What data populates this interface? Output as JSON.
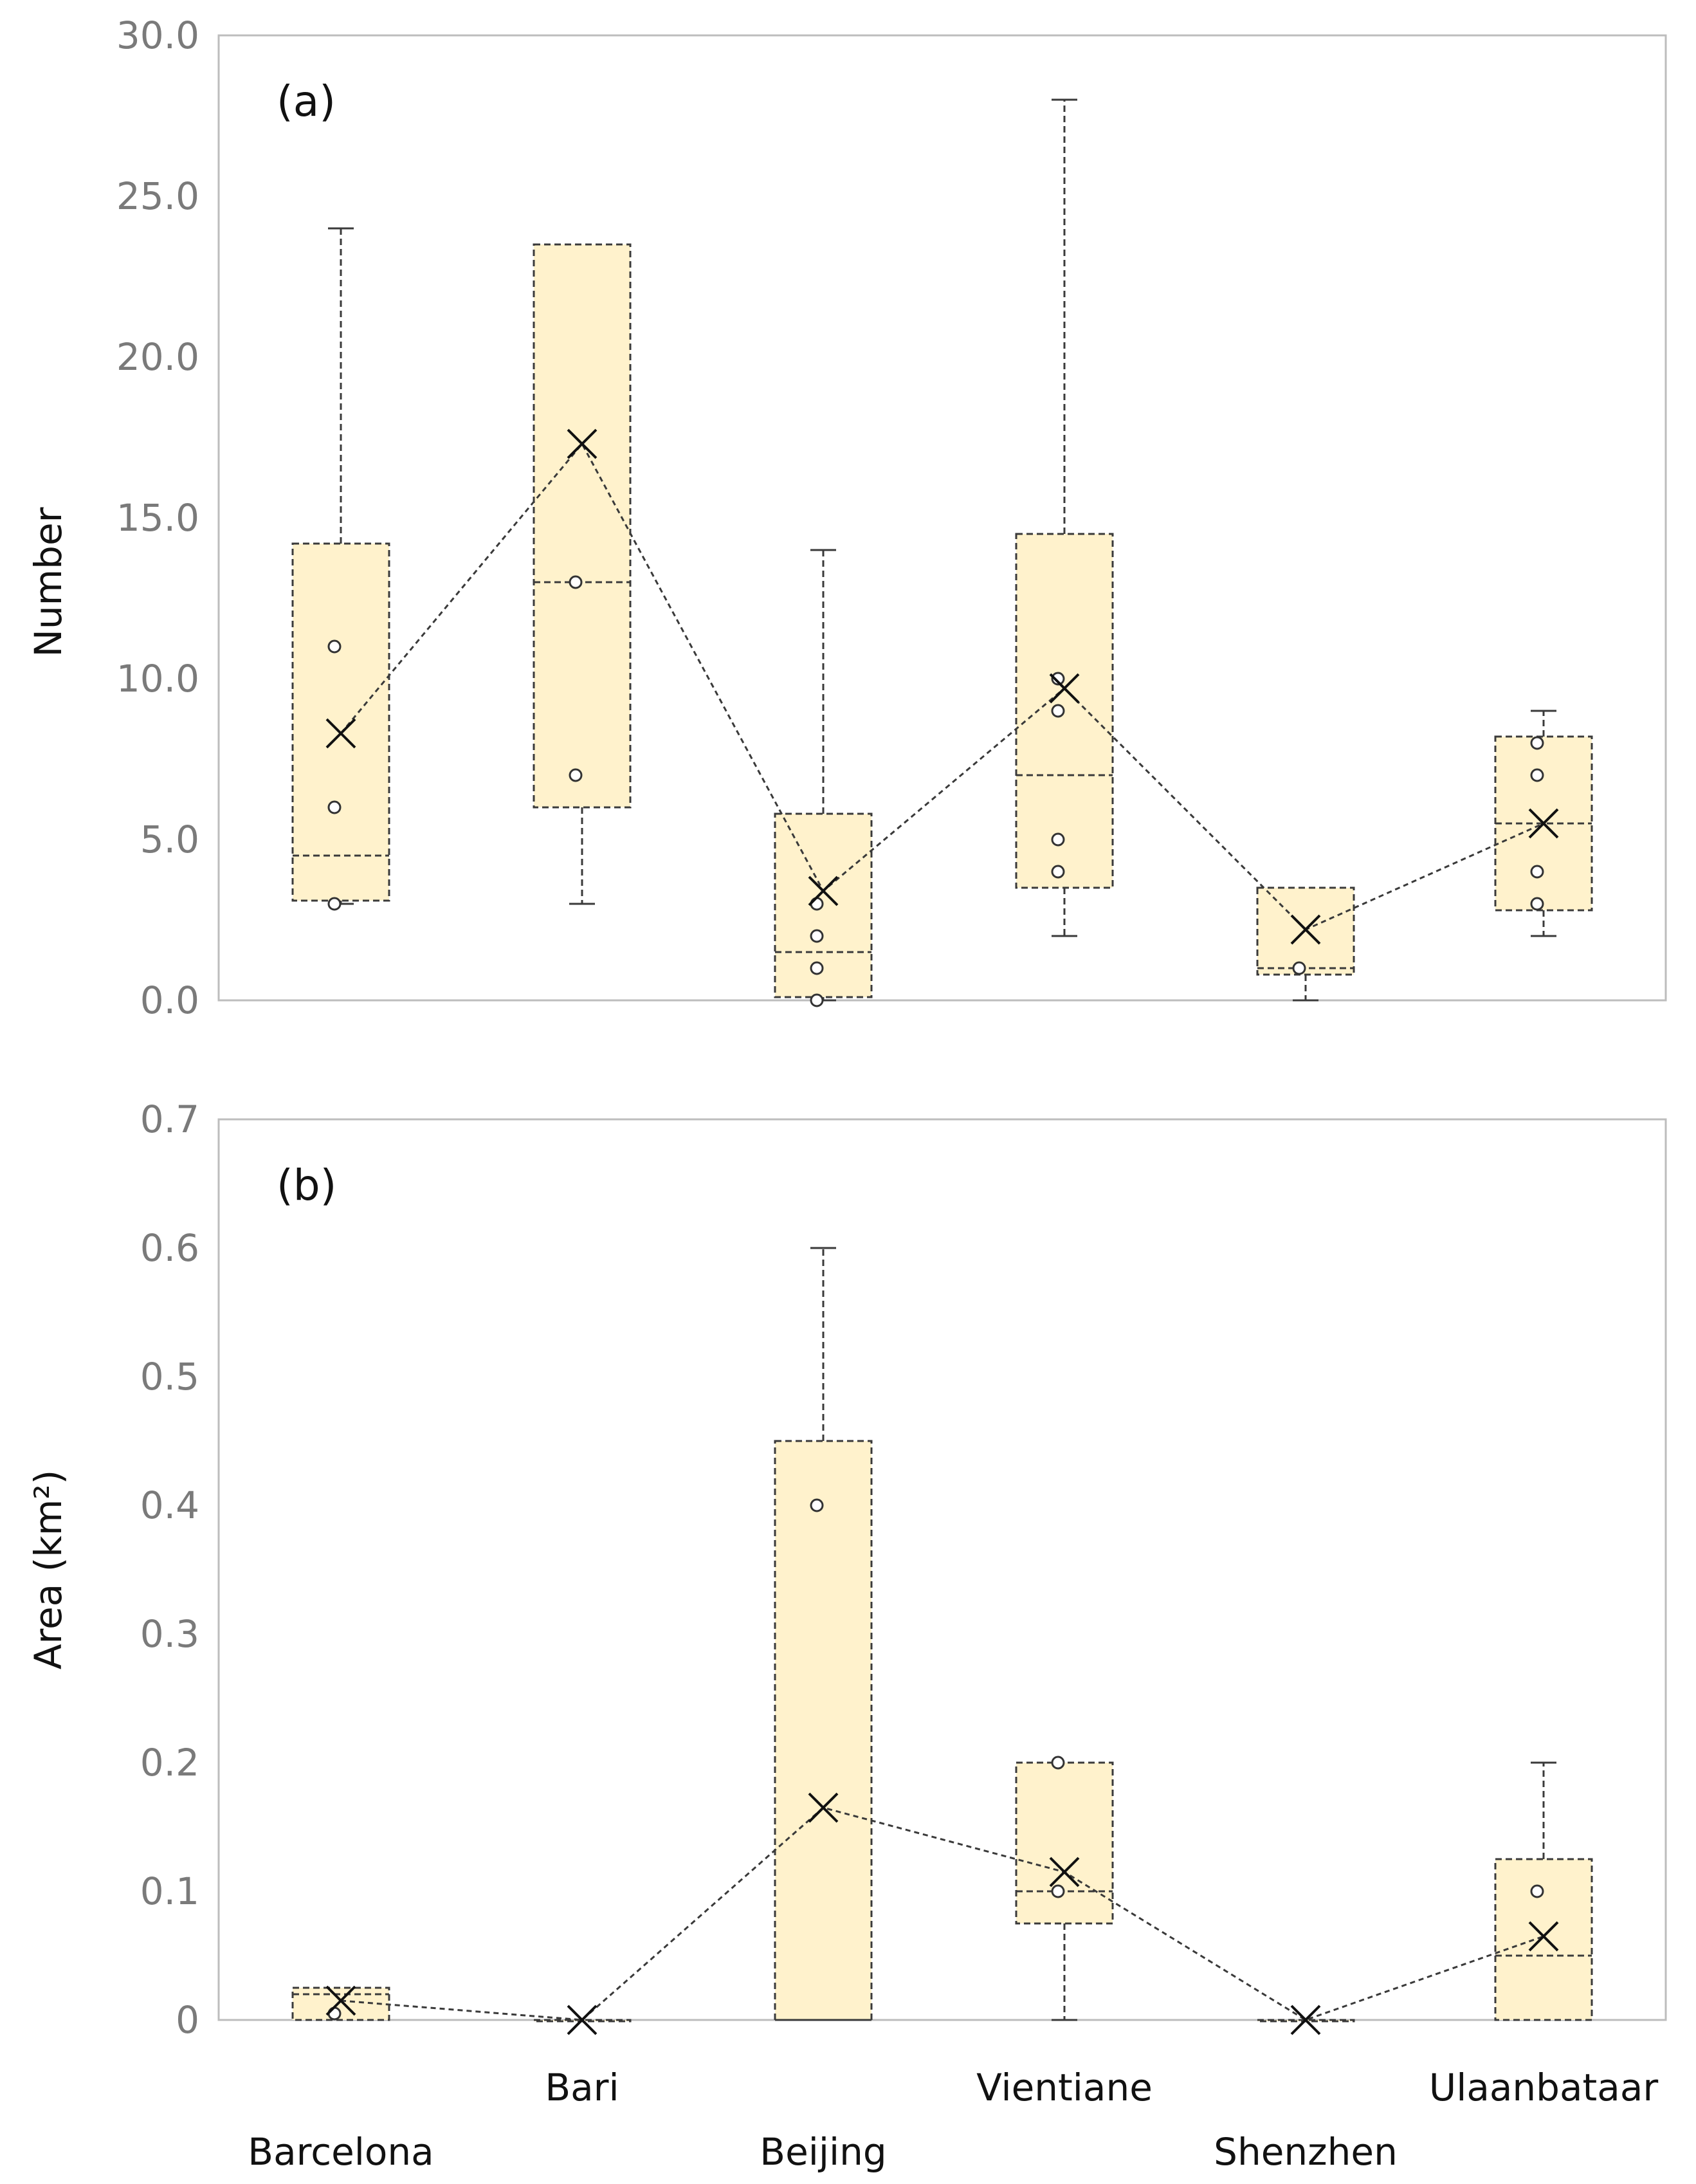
{
  "colors": {
    "box_fill": "#fff2cc",
    "stroke": "#3a3a3a",
    "tick_text": "#7a7a7a",
    "frame": "#bdbdbd"
  },
  "chart_data": [
    {
      "type": "box",
      "panel_label": "(a)",
      "ylabel": "Number",
      "ylim": [
        0,
        30
      ],
      "yticks": [
        "0.0",
        "5.0",
        "10.0",
        "15.0",
        "20.0",
        "25.0",
        "30.0"
      ],
      "categories": [
        "Barcelona",
        "Bari",
        "Beijing",
        "Vientiane",
        "Shenzhen",
        "Ulaanbataar"
      ],
      "series": [
        {
          "name": "Barcelona",
          "min": 3,
          "q1": 3.1,
          "median": 4.5,
          "q3": 14.2,
          "max": 24,
          "mean": 8.3,
          "points": [
            3,
            6,
            11
          ]
        },
        {
          "name": "Bari",
          "min": 3,
          "q1": 6,
          "median": 13,
          "q3": 23.5,
          "max": 23.5,
          "mean": 17.3,
          "points": [
            7,
            13
          ]
        },
        {
          "name": "Beijing",
          "min": 0,
          "q1": 0.1,
          "median": 1.5,
          "q3": 5.8,
          "max": 14,
          "mean": 3.4,
          "points": [
            0,
            1,
            2,
            3
          ]
        },
        {
          "name": "Vientiane",
          "min": 2,
          "q1": 3.5,
          "median": 7,
          "q3": 14.5,
          "max": 28,
          "mean": 9.7,
          "points": [
            4,
            5,
            9,
            10
          ]
        },
        {
          "name": "Shenzhen",
          "min": 0,
          "q1": 0.8,
          "median": 1,
          "q3": 3.5,
          "max": 3.5,
          "mean": 2.2,
          "points": [
            1
          ]
        },
        {
          "name": "Ulaanbataar",
          "min": 2,
          "q1": 2.8,
          "median": 5.5,
          "q3": 8.2,
          "max": 9,
          "mean": 5.5,
          "points": [
            3,
            4,
            7,
            8
          ]
        }
      ]
    },
    {
      "type": "box",
      "panel_label": "(b)",
      "ylabel": "Area (km²)",
      "ylim": [
        0,
        0.7
      ],
      "yticks": [
        "0",
        "0.1",
        "0.2",
        "0.3",
        "0.4",
        "0.5",
        "0.6",
        "0.7"
      ],
      "categories": [
        "Barcelona",
        "Bari",
        "Beijing",
        "Vientiane",
        "Shenzhen",
        "Ulaanbataar"
      ],
      "series": [
        {
          "name": "Barcelona",
          "min": 0,
          "q1": 0,
          "median": 0.02,
          "q3": 0.025,
          "max": 0.025,
          "mean": 0.015,
          "points": [
            0.005
          ]
        },
        {
          "name": "Bari",
          "min": 0,
          "q1": 0,
          "median": 0,
          "q3": 0,
          "max": 0,
          "mean": 0,
          "points": []
        },
        {
          "name": "Beijing",
          "min": 0,
          "q1": 0,
          "median": 0,
          "q3": 0.45,
          "max": 0.6,
          "mean": 0.165,
          "points": [
            0.4
          ]
        },
        {
          "name": "Vientiane",
          "min": 0,
          "q1": 0.075,
          "median": 0.1,
          "q3": 0.2,
          "max": 0.2,
          "mean": 0.115,
          "points": [
            0.1,
            0.2
          ]
        },
        {
          "name": "Shenzhen",
          "min": 0,
          "q1": 0,
          "median": 0,
          "q3": 0,
          "max": 0,
          "mean": 0,
          "points": []
        },
        {
          "name": "Ulaanbataar",
          "min": 0,
          "q1": 0,
          "median": 0.05,
          "q3": 0.125,
          "max": 0.2,
          "mean": 0.065,
          "points": [
            0.1
          ]
        }
      ]
    }
  ]
}
